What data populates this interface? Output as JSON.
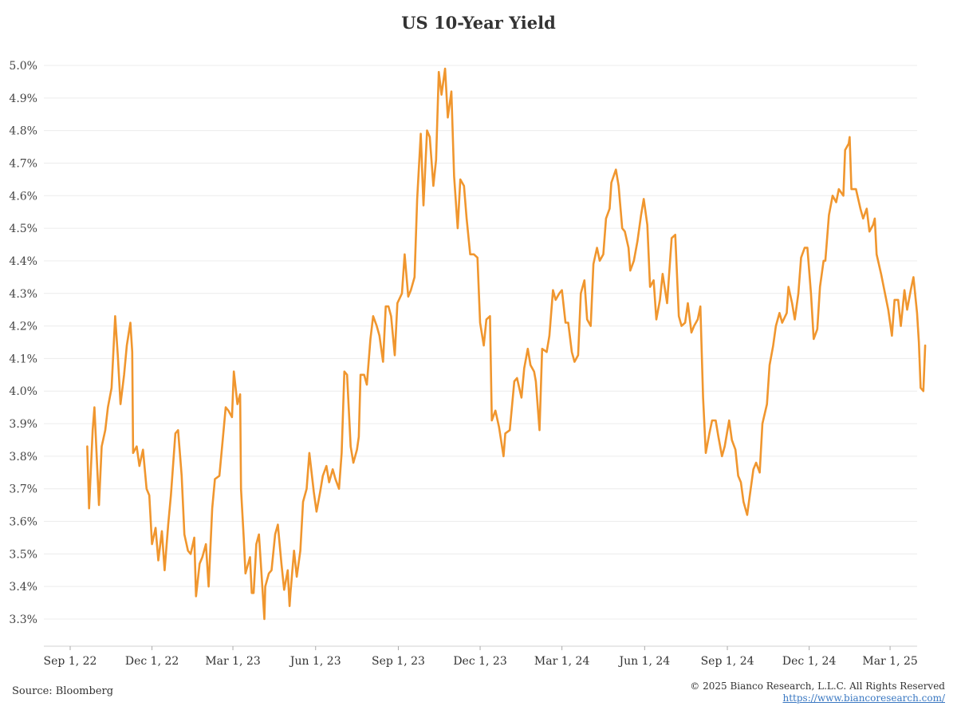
{
  "header": {
    "title": "US 10-Year Yield"
  },
  "footer": {
    "source": "Source: Bloomberg",
    "copyright": "© 2025 Bianco Research, L.L.C. All Rights Reserved",
    "link": "https://www.biancoresearch.com/"
  },
  "chart_data": {
    "type": "line",
    "title": "US 10-Year Yield",
    "xlabel": "",
    "ylabel": "",
    "ylim": [
      3.3,
      5.0
    ],
    "y_ticks": [
      "3.3%",
      "3.4%",
      "3.5%",
      "3.6%",
      "3.7%",
      "3.8%",
      "3.9%",
      "4.0%",
      "4.1%",
      "4.2%",
      "4.3%",
      "4.4%",
      "4.5%",
      "4.6%",
      "4.7%",
      "4.8%",
      "4.9%",
      "5.0%"
    ],
    "x_ticks": [
      "Sep 1, 22",
      "Dec 1, 22",
      "Mar 1, 23",
      "Jun 1, 23",
      "Sep 1, 23",
      "Dec 1, 23",
      "Mar 1, 24",
      "Jun 1, 24",
      "Sep 1, 24",
      "Dec 1, 24",
      "Mar 1, 25"
    ],
    "grid": true,
    "color": "#f0962e",
    "series": [
      {
        "x": [
          "2022-09-20",
          "2022-09-22",
          "2022-09-26",
          "2022-09-28",
          "2022-10-03",
          "2022-10-06",
          "2022-10-10",
          "2022-10-13",
          "2022-10-17",
          "2022-10-21",
          "2022-10-24",
          "2022-10-27",
          "2022-10-31",
          "2022-11-03",
          "2022-11-07",
          "2022-11-09",
          "2022-11-10",
          "2022-11-14",
          "2022-11-17",
          "2022-11-21",
          "2022-11-25",
          "2022-11-28",
          "2022-12-01",
          "2022-12-05",
          "2022-12-08",
          "2022-12-12",
          "2022-12-15",
          "2022-12-19",
          "2022-12-22",
          "2022-12-27",
          "2022-12-30",
          "2023-01-03",
          "2023-01-06",
          "2023-01-10",
          "2023-01-13",
          "2023-01-17",
          "2023-01-19",
          "2023-01-23",
          "2023-01-26",
          "2023-01-30",
          "2023-02-02",
          "2023-02-06",
          "2023-02-09",
          "2023-02-14",
          "2023-02-17",
          "2023-02-21",
          "2023-02-24",
          "2023-02-28",
          "2023-03-02",
          "2023-03-06",
          "2023-03-09",
          "2023-03-10",
          "2023-03-13",
          "2023-03-15",
          "2023-03-20",
          "2023-03-22",
          "2023-03-24",
          "2023-03-27",
          "2023-03-30",
          "2023-04-03",
          "2023-04-05",
          "2023-04-06",
          "2023-04-10",
          "2023-04-13",
          "2023-04-17",
          "2023-04-20",
          "2023-04-24",
          "2023-04-27",
          "2023-05-01",
          "2023-05-03",
          "2023-05-04",
          "2023-05-08",
          "2023-05-11",
          "2023-05-15",
          "2023-05-18",
          "2023-05-22",
          "2023-05-25",
          "2023-05-30",
          "2023-06-02",
          "2023-06-06",
          "2023-06-09",
          "2023-06-13",
          "2023-06-16",
          "2023-06-20",
          "2023-06-23",
          "2023-06-27",
          "2023-06-30",
          "2023-07-03",
          "2023-07-06",
          "2023-07-10",
          "2023-07-13",
          "2023-07-17",
          "2023-07-19",
          "2023-07-21",
          "2023-07-25",
          "2023-07-28",
          "2023-08-01",
          "2023-08-04",
          "2023-08-08",
          "2023-08-11",
          "2023-08-15",
          "2023-08-18",
          "2023-08-21",
          "2023-08-24",
          "2023-08-28",
          "2023-08-31",
          "2023-09-05",
          "2023-09-08",
          "2023-09-12",
          "2023-09-15",
          "2023-09-19",
          "2023-09-22",
          "2023-09-26",
          "2023-09-29",
          "2023-10-03",
          "2023-10-06",
          "2023-10-10",
          "2023-10-13",
          "2023-10-16",
          "2023-10-19",
          "2023-10-23",
          "2023-10-26",
          "2023-10-30",
          "2023-11-02",
          "2023-11-06",
          "2023-11-09",
          "2023-11-13",
          "2023-11-16",
          "2023-11-20",
          "2023-11-24",
          "2023-11-28",
          "2023-12-01",
          "2023-12-05",
          "2023-12-08",
          "2023-12-12",
          "2023-12-14",
          "2023-12-18",
          "2023-12-22",
          "2023-12-27",
          "2023-12-29",
          "2024-01-03",
          "2024-01-08",
          "2024-01-11",
          "2024-01-16",
          "2024-01-19",
          "2024-01-23",
          "2024-01-26",
          "2024-01-30",
          "2024-02-01",
          "2024-02-05",
          "2024-02-08",
          "2024-02-13",
          "2024-02-16",
          "2024-02-20",
          "2024-02-23",
          "2024-02-27",
          "2024-03-01",
          "2024-03-05",
          "2024-03-08",
          "2024-03-12",
          "2024-03-15",
          "2024-03-19",
          "2024-03-22",
          "2024-03-26",
          "2024-03-29",
          "2024-04-02",
          "2024-04-05",
          "2024-04-09",
          "2024-04-12",
          "2024-04-16",
          "2024-04-19",
          "2024-04-23",
          "2024-04-25",
          "2024-04-30",
          "2024-05-03",
          "2024-05-07",
          "2024-05-10",
          "2024-05-14",
          "2024-05-16",
          "2024-05-20",
          "2024-05-24",
          "2024-05-28",
          "2024-05-31",
          "2024-06-04",
          "2024-06-07",
          "2024-06-11",
          "2024-06-14",
          "2024-06-18",
          "2024-06-21",
          "2024-06-26",
          "2024-07-01",
          "2024-07-05",
          "2024-07-09",
          "2024-07-12",
          "2024-07-16",
          "2024-07-19",
          "2024-07-23",
          "2024-07-26",
          "2024-07-30",
          "2024-08-02",
          "2024-08-05",
          "2024-08-08",
          "2024-08-12",
          "2024-08-15",
          "2024-08-19",
          "2024-08-22",
          "2024-08-26",
          "2024-08-29",
          "2024-09-03",
          "2024-09-06",
          "2024-09-10",
          "2024-09-13",
          "2024-09-16",
          "2024-09-19",
          "2024-09-23",
          "2024-09-26",
          "2024-09-30",
          "2024-10-03",
          "2024-10-07",
          "2024-10-10",
          "2024-10-15",
          "2024-10-18",
          "2024-10-22",
          "2024-10-25",
          "2024-10-29",
          "2024-11-01",
          "2024-11-06",
          "2024-11-08",
          "2024-11-12",
          "2024-11-15",
          "2024-11-19",
          "2024-11-22",
          "2024-11-26",
          "2024-11-29",
          "2024-12-03",
          "2024-12-06",
          "2024-12-10",
          "2024-12-13",
          "2024-12-17",
          "2024-12-19",
          "2024-12-23",
          "2024-12-27",
          "2024-12-31",
          "2025-01-03",
          "2025-01-08",
          "2025-01-10",
          "2025-01-14",
          "2025-01-15",
          "2025-01-17",
          "2025-01-22",
          "2025-01-27",
          "2025-01-30",
          "2025-02-03",
          "2025-02-06",
          "2025-02-10",
          "2025-02-12",
          "2025-02-14",
          "2025-02-19",
          "2025-02-24",
          "2025-02-27",
          "2025-03-03",
          "2025-03-06",
          "2025-03-10",
          "2025-03-13",
          "2025-03-17",
          "2025-03-20",
          "2025-03-24",
          "2025-03-27",
          "2025-03-31",
          "2025-04-02",
          "2025-04-04",
          "2025-04-07",
          "2025-04-09"
        ],
        "y": [
          3.83,
          3.64,
          3.88,
          3.95,
          3.65,
          3.83,
          3.88,
          3.95,
          4.01,
          4.23,
          4.11,
          3.96,
          4.05,
          4.14,
          4.21,
          4.12,
          3.81,
          3.83,
          3.77,
          3.82,
          3.7,
          3.68,
          3.53,
          3.58,
          3.48,
          3.57,
          3.45,
          3.59,
          3.68,
          3.87,
          3.88,
          3.74,
          3.56,
          3.51,
          3.5,
          3.55,
          3.37,
          3.47,
          3.49,
          3.53,
          3.4,
          3.64,
          3.73,
          3.74,
          3.83,
          3.95,
          3.94,
          3.92,
          4.06,
          3.96,
          3.99,
          3.7,
          3.55,
          3.44,
          3.49,
          3.38,
          3.38,
          3.53,
          3.56,
          3.39,
          3.3,
          3.4,
          3.44,
          3.45,
          3.56,
          3.59,
          3.47,
          3.39,
          3.45,
          3.34,
          3.38,
          3.51,
          3.43,
          3.51,
          3.66,
          3.7,
          3.81,
          3.69,
          3.63,
          3.69,
          3.74,
          3.77,
          3.72,
          3.76,
          3.73,
          3.7,
          3.81,
          4.06,
          4.05,
          3.83,
          3.78,
          3.82,
          3.86,
          4.05,
          4.05,
          4.02,
          4.16,
          4.23,
          4.2,
          4.17,
          4.09,
          4.26,
          4.26,
          4.23,
          4.11,
          4.27,
          4.3,
          4.42,
          4.29,
          4.31,
          4.35,
          4.59,
          4.79,
          4.57,
          4.8,
          4.78,
          4.63,
          4.71,
          4.98,
          4.91,
          4.99,
          4.84,
          4.92,
          4.66,
          4.5,
          4.65,
          4.63,
          4.53,
          4.42,
          4.42,
          4.41,
          4.21,
          4.14,
          4.22,
          4.23,
          3.91,
          3.94,
          3.89,
          3.8,
          3.87,
          3.88,
          4.03,
          4.04,
          3.98,
          4.07,
          4.13,
          4.08,
          4.06,
          4.03,
          3.88,
          4.13,
          4.12,
          4.17,
          4.31,
          4.28,
          4.3,
          4.31,
          4.21,
          4.21,
          4.12,
          4.09,
          4.11,
          4.3,
          4.34,
          4.22,
          4.2,
          4.39,
          4.44,
          4.4,
          4.42,
          4.53,
          4.56,
          4.64,
          4.68,
          4.63,
          4.5,
          4.49,
          4.44,
          4.37,
          4.4,
          4.46,
          4.54,
          4.59,
          4.51,
          4.32,
          4.34,
          4.22,
          4.28,
          4.36,
          4.27,
          4.47,
          4.48,
          4.23,
          4.2,
          4.21,
          4.27,
          4.18,
          4.2,
          4.22,
          4.26,
          3.98,
          3.81,
          3.87,
          3.91,
          3.91,
          3.86,
          3.8,
          3.83,
          3.91,
          3.85,
          3.82,
          3.74,
          3.72,
          3.66,
          3.62,
          3.68,
          3.76,
          3.78,
          3.75,
          3.9,
          3.96,
          4.08,
          4.14,
          4.2,
          4.24,
          4.21,
          4.24,
          4.32,
          4.27,
          4.22,
          4.3,
          4.41,
          4.44,
          4.44,
          4.3,
          4.16,
          4.19,
          4.32,
          4.4,
          4.4,
          4.54,
          4.6,
          4.58,
          4.62,
          4.6,
          4.74,
          4.76,
          4.78,
          4.62,
          4.62,
          4.56,
          4.53,
          4.56,
          4.49,
          4.51,
          4.53,
          4.42,
          4.36,
          4.29,
          4.25,
          4.17,
          4.28,
          4.28,
          4.2,
          4.31,
          4.25,
          4.31,
          4.35,
          4.24,
          4.15,
          4.01,
          4.0,
          4.14
        ]
      }
    ]
  }
}
